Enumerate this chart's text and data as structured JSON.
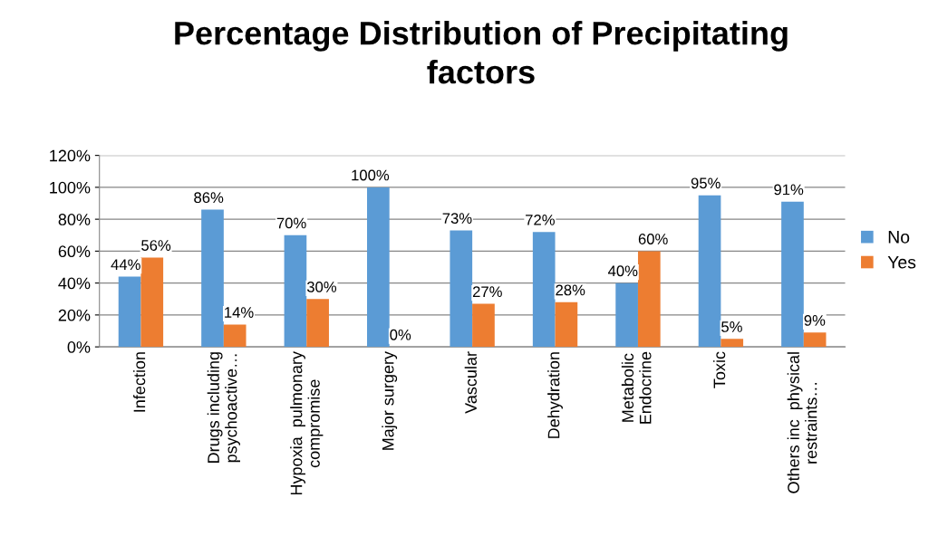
{
  "chart_data": {
    "type": "bar",
    "title": "Percentage Distribution of Precipitating\nfactors",
    "categories": [
      "Infection",
      "Drugs including\npsychoactive…",
      "Hypoxia  pulmonary\ncompromise",
      "Major surgery",
      "Vascular",
      "Dehydration",
      "Metabolic\nEndocrine",
      "Toxic",
      "Others inc  physical\nrestraints…"
    ],
    "series": [
      {
        "name": "No",
        "color": "#5b9bd5",
        "values": [
          44,
          86,
          70,
          100,
          73,
          72,
          40,
          95,
          91
        ],
        "value_labels": [
          "44%",
          "86%",
          "70%",
          "100%",
          "73%",
          "72%",
          "40%",
          "95%",
          "91%"
        ]
      },
      {
        "name": "Yes",
        "color": "#ed7d31",
        "values": [
          56,
          14,
          30,
          0,
          27,
          28,
          60,
          5,
          9
        ],
        "value_labels": [
          "56%",
          "14%",
          "30%",
          "0%",
          "27%",
          "28%",
          "60%",
          "5%",
          "9%"
        ]
      }
    ],
    "ylim": [
      0,
      120
    ],
    "yticks": [
      {
        "value": 0,
        "label": "0%"
      },
      {
        "value": 20,
        "label": "20%"
      },
      {
        "value": 40,
        "label": "40%"
      },
      {
        "value": 60,
        "label": "60%"
      },
      {
        "value": 80,
        "label": "80%"
      },
      {
        "value": 100,
        "label": "100%"
      },
      {
        "value": 120,
        "label": "120%"
      }
    ],
    "grid": "y",
    "legend": "right"
  }
}
